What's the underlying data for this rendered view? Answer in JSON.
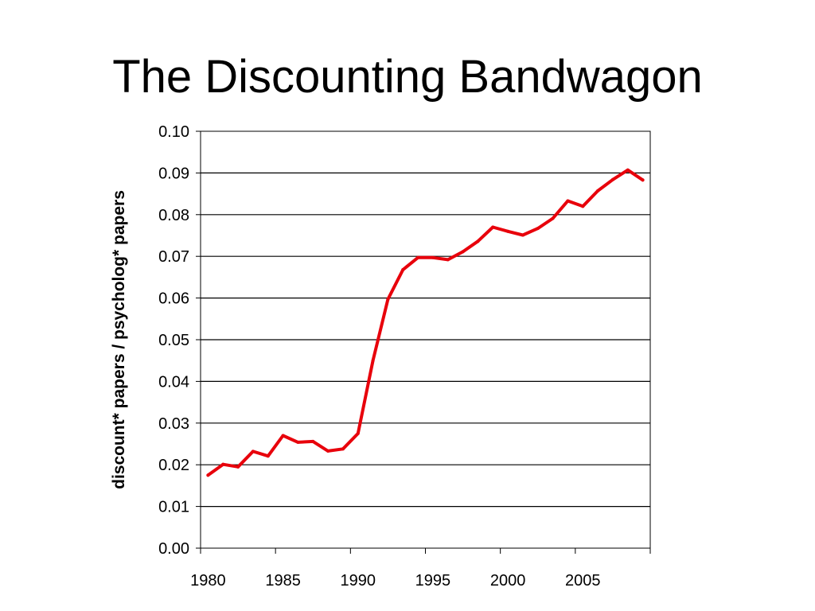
{
  "slide": {
    "title": "The Discounting Bandwagon"
  },
  "chart_data": {
    "type": "line",
    "title": "",
    "xlabel": "",
    "ylabel": "discount* papers / psycholog* papers",
    "xlim": [
      1979.5,
      2009.5
    ],
    "ylim": [
      0,
      0.1
    ],
    "x_ticks": [
      1980,
      1985,
      1990,
      1995,
      2000,
      2005
    ],
    "x_tick_labels": [
      "1980",
      "1985",
      "1990",
      "1995",
      "2000",
      "2005"
    ],
    "y_ticks": [
      0,
      0.01,
      0.02,
      0.03,
      0.04,
      0.05,
      0.06,
      0.07,
      0.08,
      0.09,
      0.1
    ],
    "y_tick_labels": [
      "0.00",
      "0.01",
      "0.02",
      "0.03",
      "0.04",
      "0.05",
      "0.06",
      "0.07",
      "0.08",
      "0.09",
      "0.10"
    ],
    "grid": "horizontal",
    "legend": "none",
    "series": [
      {
        "color": "#e8000b",
        "x": [
          1980,
          1981,
          1982,
          1983,
          1984,
          1985,
          1986,
          1987,
          1988,
          1989,
          1990,
          1991,
          1992,
          1993,
          1994,
          1995,
          1996,
          1997,
          1998,
          1999,
          2000,
          2001,
          2002,
          2003,
          2004,
          2005,
          2006,
          2007,
          2008,
          2009
        ],
        "values": [
          0.0175,
          0.0201,
          0.0195,
          0.0232,
          0.0221,
          0.027,
          0.0254,
          0.0256,
          0.0233,
          0.0238,
          0.0275,
          0.045,
          0.0597,
          0.0668,
          0.0697,
          0.0697,
          0.0692,
          0.0711,
          0.0736,
          0.077,
          0.076,
          0.0751,
          0.0767,
          0.0791,
          0.0833,
          0.082,
          0.0857,
          0.0884,
          0.0907,
          0.0883
        ]
      }
    ]
  }
}
